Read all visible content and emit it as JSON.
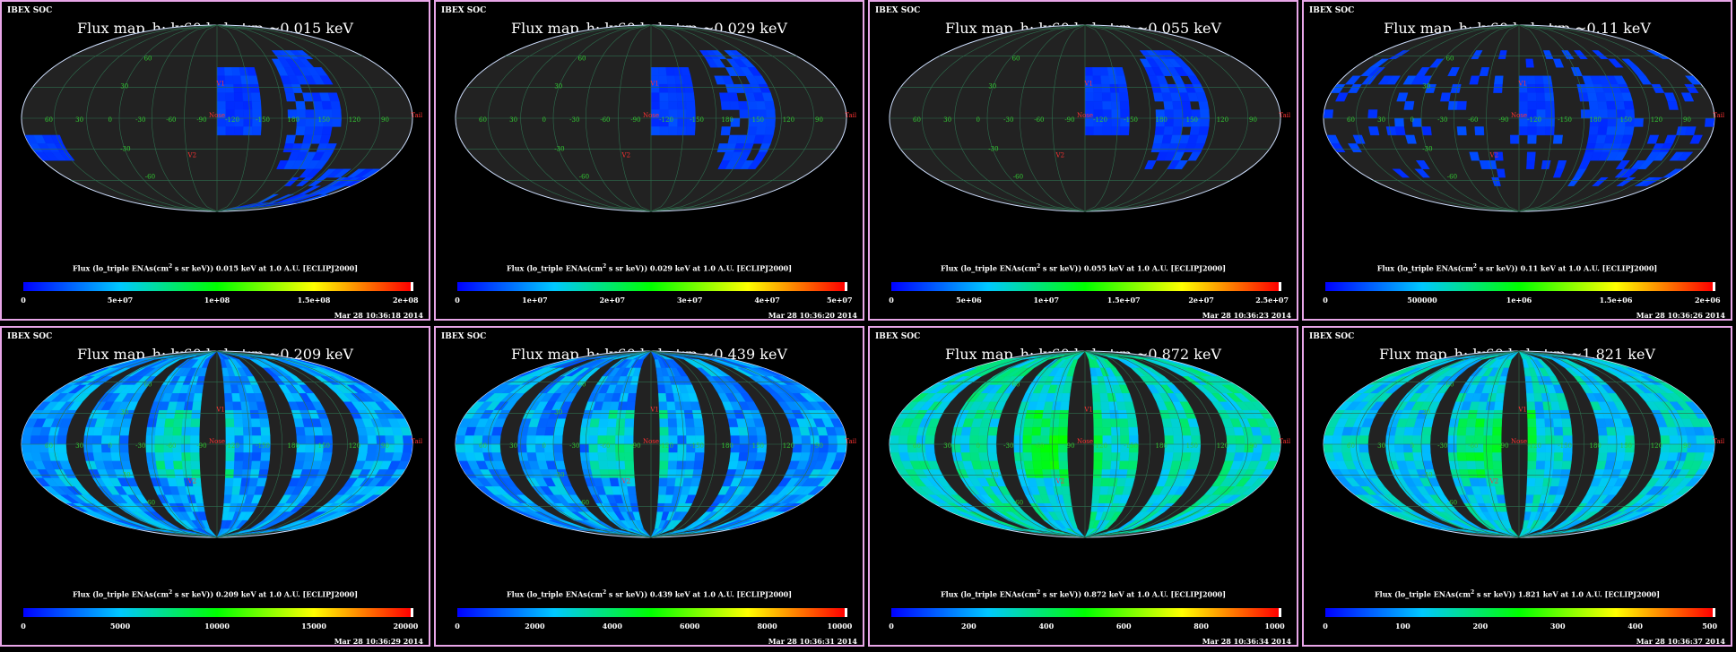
{
  "soc_label": "IBEX SOC",
  "panels": [
    {
      "title": "Flux   map_h: lv60 lode trp ~0.015 keV",
      "caption_pre": "Flux (lo_triple ENAs(cm",
      "caption_post": " s sr keV))  0.015 keV at 1.0 A.U. [ECLIPJ2000]",
      "ticks": [
        "0",
        "5e+07",
        "1e+08",
        "1.5e+08",
        "2e+08"
      ],
      "timestamp": "Mar 28 10:36:18 2014",
      "coverage": "early"
    },
    {
      "title": "Flux   map_h: lv60 lode trp ~0.029 keV",
      "caption_pre": "Flux (lo_triple ENAs(cm",
      "caption_post": " s sr keV))  0.029 keV at 1.0 A.U. [ECLIPJ2000]",
      "ticks": [
        "0",
        "1e+07",
        "2e+07",
        "3e+07",
        "4e+07",
        "5e+07"
      ],
      "timestamp": "Mar 28 10:36:20 2014",
      "coverage": "early"
    },
    {
      "title": "Flux   map_h: lv60 lode trp ~0.055 keV",
      "caption_pre": "Flux (lo_triple ENAs(cm",
      "caption_post": " s sr keV))  0.055 keV at 1.0 A.U. [ECLIPJ2000]",
      "ticks": [
        "0",
        "5e+06",
        "1e+07",
        "1.5e+07",
        "2e+07",
        "2.5e+07"
      ],
      "timestamp": "Mar 28 10:36:23 2014",
      "coverage": "early"
    },
    {
      "title": "Flux   map_h: lv60 lode trp ~0.11 keV",
      "caption_pre": "Flux (lo_triple ENAs(cm",
      "caption_post": " s sr keV))  0.11 keV at 1.0 A.U. [ECLIPJ2000]",
      "ticks": [
        "0",
        "500000",
        "1e+06",
        "1.5e+06",
        "2e+06"
      ],
      "timestamp": "Mar 28 10:36:26 2014",
      "coverage": "partial"
    },
    {
      "title": "Flux   map_h: lv60 lode trp ~0.209 keV",
      "caption_pre": "Flux (lo_triple ENAs(cm",
      "caption_post": " s sr keV))  0.209 keV at 1.0 A.U. [ECLIPJ2000]",
      "ticks": [
        "0",
        "5000",
        "10000",
        "15000",
        "20000"
      ],
      "timestamp": "Mar 28 10:36:29 2014",
      "coverage": "full"
    },
    {
      "title": "Flux   map_h: lv60 lode trp ~0.439 keV",
      "caption_pre": "Flux (lo_triple ENAs(cm",
      "caption_post": " s sr keV))  0.439 keV at 1.0 A.U. [ECLIPJ2000]",
      "ticks": [
        "0",
        "2000",
        "4000",
        "6000",
        "8000",
        "10000"
      ],
      "timestamp": "Mar 28 10:36:31 2014",
      "coverage": "full"
    },
    {
      "title": "Flux   map_h: lv60 lode trp ~0.872 keV",
      "caption_pre": "Flux (lo_triple ENAs(cm",
      "caption_post": " s sr keV))  0.872 keV at 1.0 A.U. [ECLIPJ2000]",
      "ticks": [
        "0",
        "200",
        "400",
        "600",
        "800",
        "1000"
      ],
      "timestamp": "Mar 28 10:36:34 2014",
      "coverage": "full"
    },
    {
      "title": "Flux   map_h: lv60 lode trp ~1.821 keV",
      "caption_pre": "Flux (lo_triple ENAs(cm",
      "caption_post": " s sr keV))  1.821 keV at 1.0 A.U. [ECLIPJ2000]",
      "ticks": [
        "0",
        "100",
        "200",
        "300",
        "400",
        "500"
      ],
      "timestamp": "Mar 28 10:36:37 2014",
      "coverage": "full"
    }
  ],
  "map_labels": {
    "longitude": [
      "60",
      "30",
      "0",
      "-30",
      "-60",
      "-90",
      "-120",
      "-150",
      "180",
      "150",
      "120",
      "90"
    ],
    "latitude": [
      "60",
      "30",
      "-30",
      "-60"
    ],
    "markers": [
      "V1",
      "V2",
      "Nose",
      "Tail"
    ]
  },
  "chart_data": {
    "type": "heatmap",
    "projection": "Mollweide all-sky",
    "colorbar_colors": [
      "#0000ff",
      "#00c8ff",
      "#00ff00",
      "#ffff00",
      "#ff0000"
    ],
    "energies_keV": [
      0.015,
      0.029,
      0.055,
      0.11,
      0.209,
      0.439,
      0.872,
      1.821
    ],
    "colorbar_max": [
      200000000.0,
      50000000.0,
      25000000.0,
      2000000.0,
      20000,
      10000,
      1000,
      500
    ]
  },
  "colors": {
    "border": "#e8a6e8",
    "gap": "#222222",
    "grid": "#2e6e4e",
    "label_green": "#33cc33",
    "label_red": "#ff3333"
  }
}
